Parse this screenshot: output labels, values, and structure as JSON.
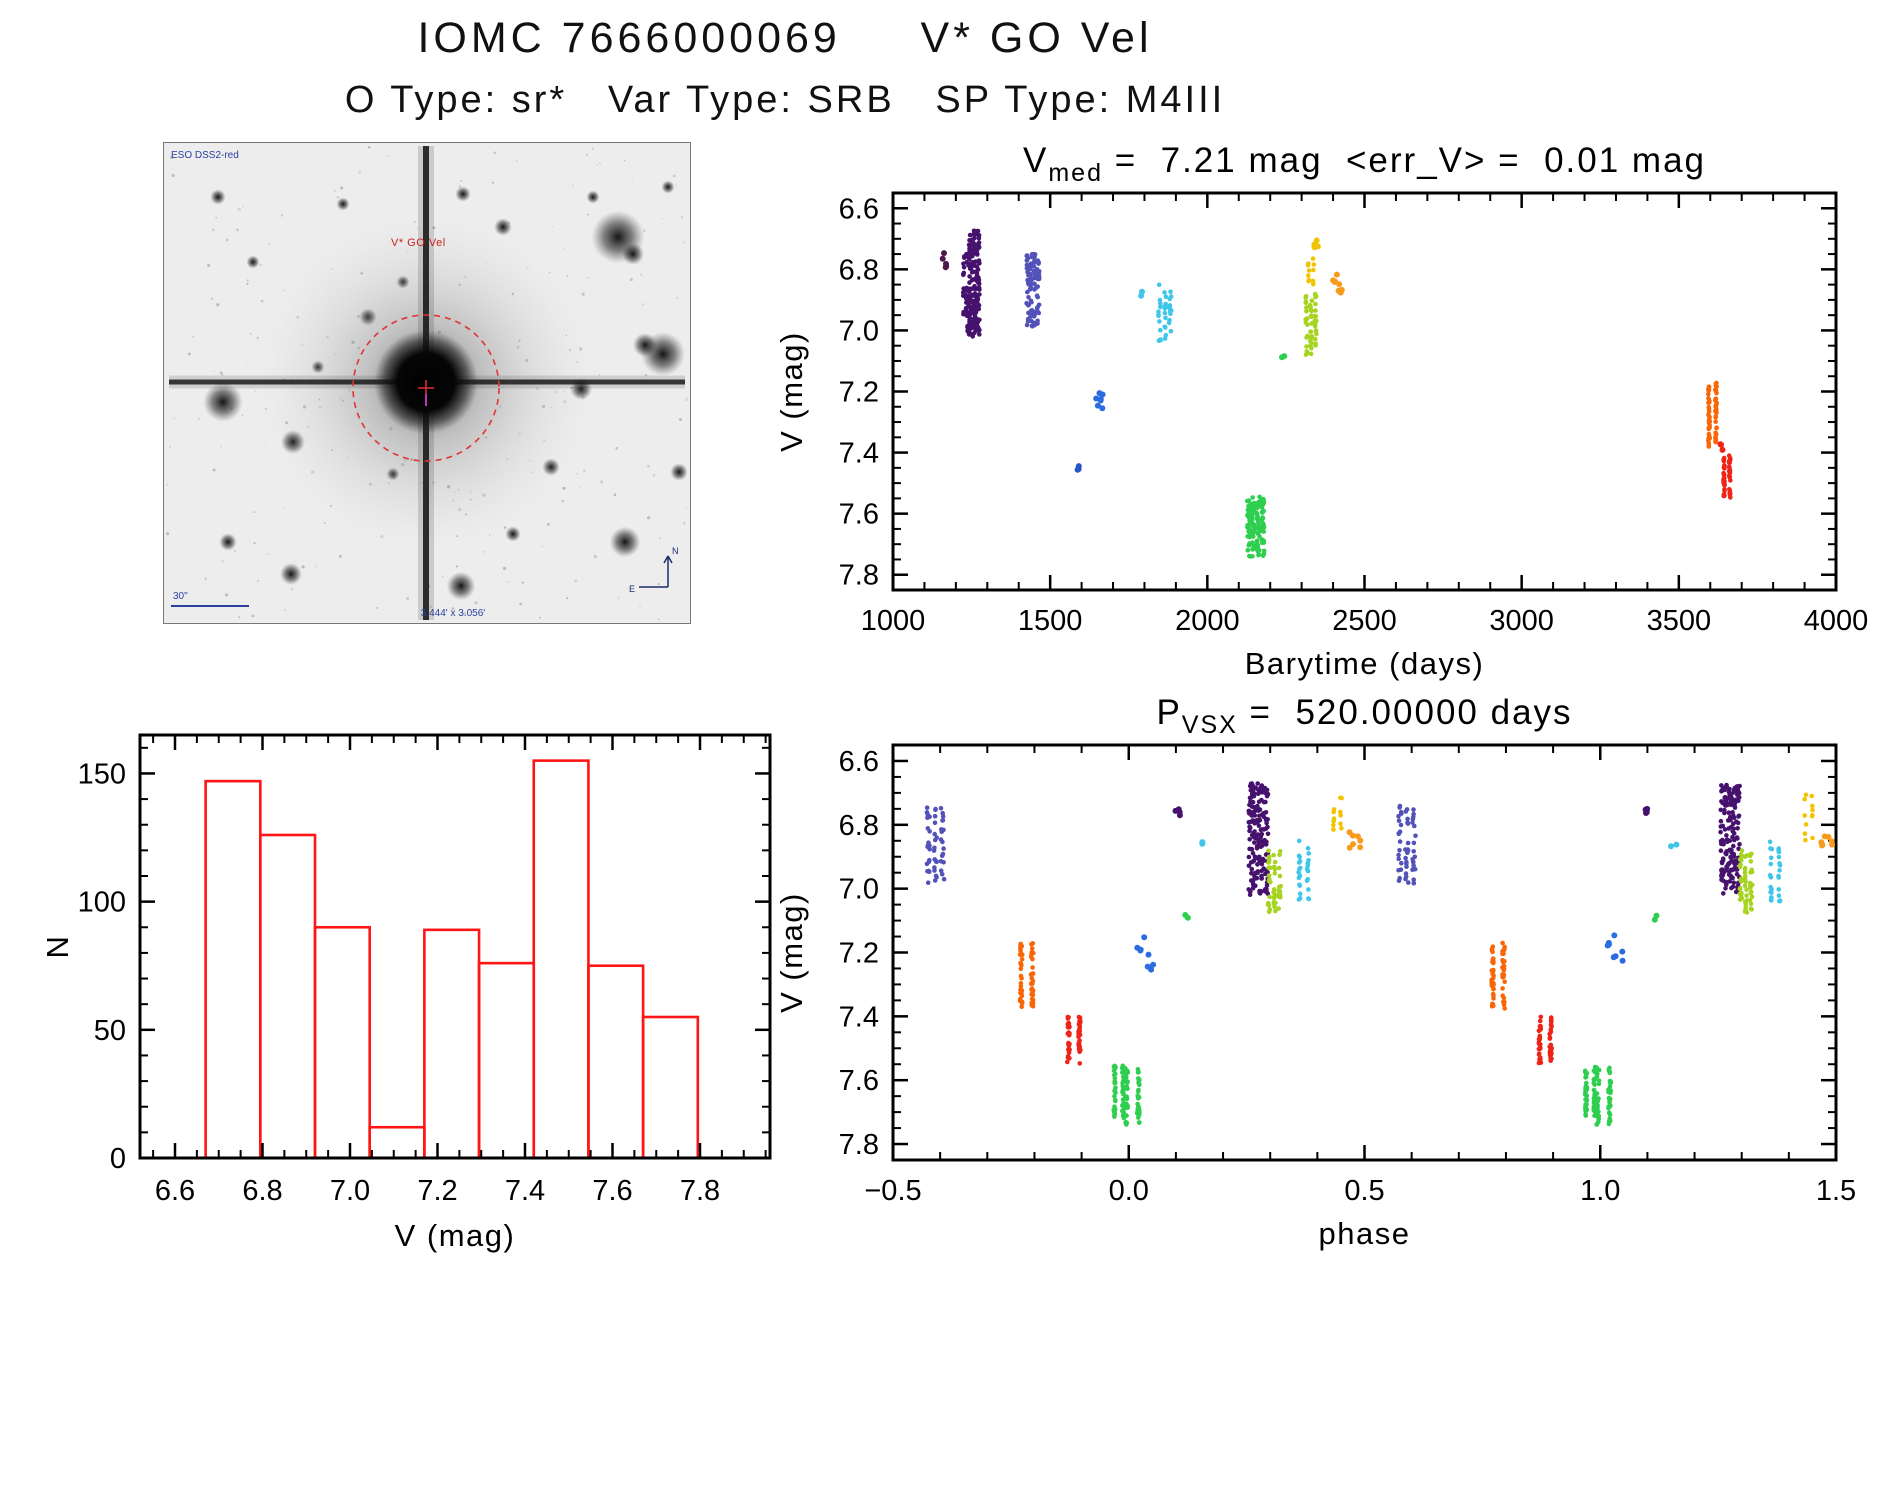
{
  "page": {
    "title": "IOMC 7666000069     V* GO Vel",
    "subtitle": "O Type: sr*   Var Type: SRB   SP Type: M4III"
  },
  "finder": {
    "survey_label": "ESO DSS2-red",
    "star_label": "V* GO Vel",
    "scale_label": "30\"",
    "fov_label": "3.444' x 3.056'",
    "compass": {
      "north": "N",
      "east": "E"
    }
  },
  "chart_data": [
    {
      "id": "lightcurve",
      "type": "scatter",
      "title": {
        "prefix": "V",
        "sub": "med",
        "rest": " =  7.21 mag  <err_V> =  0.01 mag"
      },
      "v_med_mag": 7.21,
      "err_v_mag": 0.01,
      "xlabel": "Barytime (days)",
      "ylabel": "V (mag)",
      "x_left": 1000,
      "x_right": 4000,
      "y_top": 6.55,
      "y_bottom": 7.85,
      "xticks": [
        1000,
        1500,
        2000,
        2500,
        3000,
        3500,
        4000
      ],
      "xtick_labels": [
        "1000",
        "1500",
        "2000",
        "2500",
        "3000",
        "3500",
        "4000"
      ],
      "yticks": [
        6.6,
        6.8,
        7.0,
        7.2,
        7.4,
        7.6,
        7.8
      ],
      "ytick_labels": [
        "6.6",
        "6.8",
        "7.0",
        "7.2",
        "7.4",
        "7.6",
        "7.8"
      ],
      "grid": false,
      "clusters": [
        {
          "x": [
            1158,
            1172
          ],
          "v": [
            6.74,
            6.8
          ],
          "n": 5,
          "color": "#50184a",
          "mode": "dots"
        },
        {
          "x": [
            1225,
            1242
          ],
          "v": [
            6.74,
            6.96
          ],
          "n": 35,
          "color": "#46126e",
          "mode": "streak",
          "strands": 3
        },
        {
          "x": [
            1245,
            1272
          ],
          "v": [
            6.67,
            7.02
          ],
          "n": 170,
          "color": "#46126e",
          "mode": "streak",
          "strands": 5
        },
        {
          "x": [
            1238,
            1252
          ],
          "v": [
            6.96,
            7.01
          ],
          "n": 6,
          "color": "#46126e",
          "mode": "dots"
        },
        {
          "x": [
            1428,
            1462
          ],
          "v": [
            6.75,
            6.99
          ],
          "n": 90,
          "color": "#5352b8",
          "mode": "streak",
          "strands": 4
        },
        {
          "x": [
            1584,
            1594
          ],
          "v": [
            7.44,
            7.47
          ],
          "n": 3,
          "color": "#2356c8",
          "mode": "dots"
        },
        {
          "x": [
            1644,
            1668
          ],
          "v": [
            7.16,
            7.26
          ],
          "n": 7,
          "color": "#2b6ce0",
          "mode": "dots"
        },
        {
          "x": [
            1786,
            1794
          ],
          "v": [
            6.86,
            6.89
          ],
          "n": 2,
          "color": "#3fc6ea",
          "mode": "dots"
        },
        {
          "x": [
            1848,
            1882
          ],
          "v": [
            6.85,
            7.04
          ],
          "n": 38,
          "color": "#3fc6ea",
          "mode": "streak",
          "strands": 3
        },
        {
          "x": [
            2235,
            2245
          ],
          "v": [
            7.08,
            7.11
          ],
          "n": 2,
          "color": "#2ece4e",
          "mode": "dots"
        },
        {
          "x": [
            2132,
            2176
          ],
          "v": [
            7.54,
            7.74
          ],
          "n": 130,
          "color": "#2ece4e",
          "mode": "streak",
          "strands": 4
        },
        {
          "x": [
            2316,
            2344
          ],
          "v": [
            6.88,
            7.08
          ],
          "n": 55,
          "color": "#a6d420",
          "mode": "streak",
          "strands": 3
        },
        {
          "x": [
            2322,
            2338
          ],
          "v": [
            6.76,
            6.85
          ],
          "n": 12,
          "color": "#f0c400",
          "mode": "streak",
          "strands": 2
        },
        {
          "x": [
            2340,
            2352
          ],
          "v": [
            6.69,
            6.74
          ],
          "n": 5,
          "color": "#f0c400",
          "mode": "dots"
        },
        {
          "x": [
            2395,
            2428
          ],
          "v": [
            6.81,
            6.88
          ],
          "n": 9,
          "color": "#f89b1c",
          "mode": "dots"
        },
        {
          "x": [
            3596,
            3618
          ],
          "v": [
            7.17,
            7.38
          ],
          "n": 70,
          "color": "#f86606",
          "mode": "streak",
          "strands": 2
        },
        {
          "x": [
            3630,
            3642
          ],
          "v": [
            7.37,
            7.4
          ],
          "n": 3,
          "color": "#ee2418",
          "mode": "dots"
        },
        {
          "x": [
            3644,
            3662
          ],
          "v": [
            7.41,
            7.55
          ],
          "n": 55,
          "color": "#ee2418",
          "mode": "streak",
          "strands": 2
        }
      ]
    },
    {
      "id": "histogram",
      "type": "bar",
      "xlabel": "V (mag)",
      "ylabel": "N",
      "x_left": 6.52,
      "x_right": 7.96,
      "y_top": 165,
      "y_bottom": 0,
      "xticks": [
        6.6,
        6.8,
        7.0,
        7.2,
        7.4,
        7.6,
        7.8
      ],
      "xtick_labels": [
        "6.6",
        "6.8",
        "7.0",
        "7.2",
        "7.4",
        "7.6",
        "7.8"
      ],
      "yticks": [
        0,
        50,
        100,
        150
      ],
      "ytick_labels": [
        "0",
        "50",
        "100",
        "150"
      ],
      "bin_start": 6.67,
      "bin_width": 0.125,
      "values": [
        147,
        126,
        90,
        12,
        89,
        76,
        155,
        75,
        55
      ],
      "bar_color": "#ff1515",
      "grid": false
    },
    {
      "id": "phase",
      "type": "scatter",
      "title": {
        "prefix": "P",
        "sub": "VSX",
        "rest": " =  520.00000 days"
      },
      "period_days": 520.0,
      "xlabel": "phase",
      "ylabel": "V (mag)",
      "x_left": -0.5,
      "x_right": 1.5,
      "y_top": 6.55,
      "y_bottom": 7.85,
      "xticks": [
        -0.5,
        0.0,
        0.5,
        1.0,
        1.5
      ],
      "xtick_labels": [
        "−0.5",
        "0.0",
        "0.5",
        "1.0",
        "1.5"
      ],
      "yticks": [
        6.6,
        6.8,
        7.0,
        7.2,
        7.4,
        7.6,
        7.8
      ],
      "ytick_labels": [
        "6.6",
        "6.8",
        "7.0",
        "7.2",
        "7.4",
        "7.6",
        "7.8"
      ],
      "grid": false,
      "clusters": [
        {
          "x": [
            -0.425,
            -0.395
          ],
          "v": [
            6.74,
            6.99
          ],
          "n": 55,
          "color": "#5352b8",
          "mode": "streak",
          "strands": 3
        },
        {
          "x": [
            0.575,
            0.605
          ],
          "v": [
            6.74,
            6.99
          ],
          "n": 55,
          "color": "#5352b8",
          "mode": "streak",
          "strands": 3
        },
        {
          "x": [
            0.095,
            0.112
          ],
          "v": [
            6.73,
            6.77
          ],
          "n": 4,
          "color": "#46126e",
          "mode": "dots"
        },
        {
          "x": [
            1.095,
            1.112
          ],
          "v": [
            6.73,
            6.77
          ],
          "n": 4,
          "color": "#46126e",
          "mode": "dots"
        },
        {
          "x": [
            0.258,
            0.292
          ],
          "v": [
            6.67,
            7.02
          ],
          "n": 170,
          "color": "#46126e",
          "mode": "streak",
          "strands": 5
        },
        {
          "x": [
            1.258,
            1.292
          ],
          "v": [
            6.67,
            7.02
          ],
          "n": 170,
          "color": "#46126e",
          "mode": "streak",
          "strands": 5
        },
        {
          "x": [
            0.298,
            0.32
          ],
          "v": [
            6.88,
            7.08
          ],
          "n": 55,
          "color": "#a6d420",
          "mode": "streak",
          "strands": 3
        },
        {
          "x": [
            1.298,
            1.32
          ],
          "v": [
            6.88,
            7.08
          ],
          "n": 55,
          "color": "#a6d420",
          "mode": "streak",
          "strands": 3
        },
        {
          "x": [
            0.362,
            0.38
          ],
          "v": [
            6.85,
            7.04
          ],
          "n": 30,
          "color": "#3fc6ea",
          "mode": "streak",
          "strands": 2
        },
        {
          "x": [
            1.362,
            1.38
          ],
          "v": [
            6.85,
            7.04
          ],
          "n": 30,
          "color": "#3fc6ea",
          "mode": "streak",
          "strands": 2
        },
        {
          "x": [
            0.435,
            0.45
          ],
          "v": [
            6.7,
            6.85
          ],
          "n": 12,
          "color": "#f0c400",
          "mode": "streak",
          "strands": 2
        },
        {
          "x": [
            1.435,
            1.45
          ],
          "v": [
            6.7,
            6.85
          ],
          "n": 12,
          "color": "#f0c400",
          "mode": "streak",
          "strands": 2
        },
        {
          "x": [
            0.468,
            0.492
          ],
          "v": [
            6.82,
            6.88
          ],
          "n": 7,
          "color": "#f89b1c",
          "mode": "dots"
        },
        {
          "x": [
            1.468,
            1.492
          ],
          "v": [
            6.82,
            6.88
          ],
          "n": 7,
          "color": "#f89b1c",
          "mode": "dots"
        },
        {
          "x": [
            0.012,
            0.052
          ],
          "v": [
            7.14,
            7.26
          ],
          "n": 8,
          "color": "#2b6ce0",
          "mode": "dots"
        },
        {
          "x": [
            1.012,
            1.052
          ],
          "v": [
            7.14,
            7.26
          ],
          "n": 8,
          "color": "#2b6ce0",
          "mode": "dots"
        },
        {
          "x": [
            -0.228,
            -0.205
          ],
          "v": [
            7.17,
            7.38
          ],
          "n": 65,
          "color": "#f86606",
          "mode": "streak",
          "strands": 2
        },
        {
          "x": [
            0.772,
            0.795
          ],
          "v": [
            7.17,
            7.38
          ],
          "n": 65,
          "color": "#f86606",
          "mode": "streak",
          "strands": 2
        },
        {
          "x": [
            -0.128,
            -0.105
          ],
          "v": [
            7.4,
            7.55
          ],
          "n": 55,
          "color": "#ee2418",
          "mode": "streak",
          "strands": 2
        },
        {
          "x": [
            0.872,
            0.895
          ],
          "v": [
            7.4,
            7.55
          ],
          "n": 55,
          "color": "#ee2418",
          "mode": "streak",
          "strands": 2
        },
        {
          "x": [
            -0.03,
            -0.012
          ],
          "v": [
            7.55,
            7.72
          ],
          "n": 60,
          "color": "#2ece4e",
          "mode": "streak",
          "strands": 2
        },
        {
          "x": [
            0.97,
            0.988
          ],
          "v": [
            7.55,
            7.72
          ],
          "n": 60,
          "color": "#2ece4e",
          "mode": "streak",
          "strands": 2
        },
        {
          "x": [
            -0.005,
            0.02
          ],
          "v": [
            7.56,
            7.74
          ],
          "n": 60,
          "color": "#2ece4e",
          "mode": "streak",
          "strands": 2
        },
        {
          "x": [
            0.995,
            1.02
          ],
          "v": [
            7.56,
            7.74
          ],
          "n": 60,
          "color": "#2ece4e",
          "mode": "streak",
          "strands": 2
        },
        {
          "x": [
            0.115,
            0.128
          ],
          "v": [
            7.08,
            7.11
          ],
          "n": 2,
          "color": "#2ece4e",
          "mode": "dots"
        },
        {
          "x": [
            1.115,
            1.128
          ],
          "v": [
            7.08,
            7.11
          ],
          "n": 2,
          "color": "#2ece4e",
          "mode": "dots"
        },
        {
          "x": [
            0.15,
            0.162
          ],
          "v": [
            6.85,
            6.88
          ],
          "n": 2,
          "color": "#3fc6ea",
          "mode": "dots"
        },
        {
          "x": [
            1.15,
            1.162
          ],
          "v": [
            6.85,
            6.88
          ],
          "n": 2,
          "color": "#3fc6ea",
          "mode": "dots"
        }
      ]
    }
  ]
}
